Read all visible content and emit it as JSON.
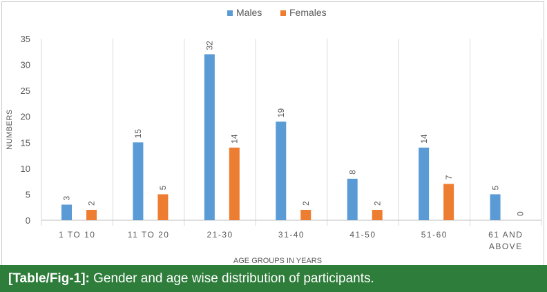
{
  "chart_data": {
    "type": "bar",
    "categories": [
      "1 TO 10",
      "11 TO 20",
      "21-30",
      "31-40",
      "41-50",
      "51-60",
      "61 AND ABOVE"
    ],
    "series": [
      {
        "name": "Males",
        "values": [
          3,
          15,
          32,
          19,
          8,
          14,
          5
        ],
        "color": "#5b9bd5"
      },
      {
        "name": "Females",
        "values": [
          2,
          5,
          14,
          2,
          2,
          7,
          0
        ],
        "color": "#ed7d31"
      }
    ],
    "xlabel": "AGE GROUPS IN YEARS",
    "ylabel": "NUMBERS",
    "ylim": [
      0,
      35
    ],
    "yticks": [
      0,
      5,
      10,
      15,
      20,
      25,
      30,
      35
    ],
    "legend_position": "top-center",
    "grid": "vertical category separators"
  },
  "caption": {
    "label": "[Table/Fig-1]:",
    "text": " Gender and age wise distribution of participants."
  }
}
